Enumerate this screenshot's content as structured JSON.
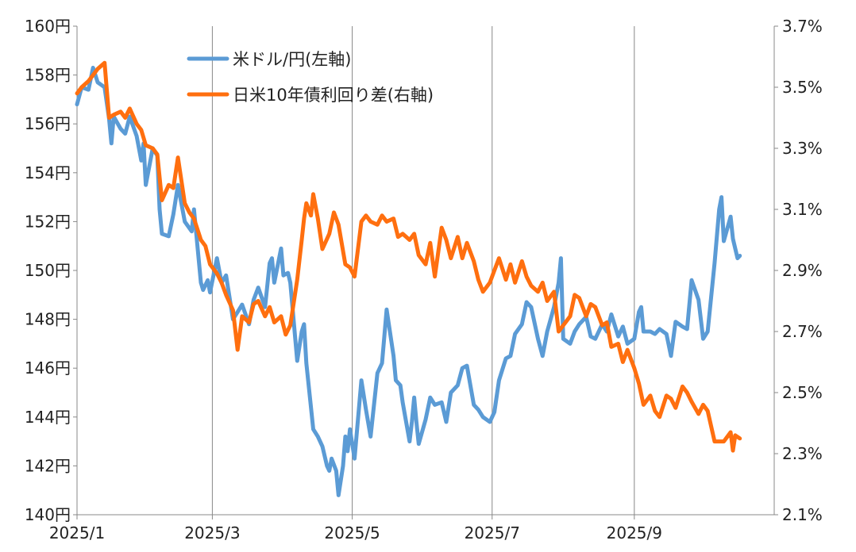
{
  "chart_data": {
    "type": "line",
    "title": "",
    "x_ticks": [
      "2025/1",
      "2025/3",
      "2025/5",
      "2025/7",
      "2025/9"
    ],
    "left_axis": {
      "ticks": [
        "140円",
        "142円",
        "144円",
        "146円",
        "148円",
        "150円",
        "152円",
        "154円",
        "156円",
        "158円",
        "160円"
      ],
      "ylim": [
        140,
        160
      ]
    },
    "right_axis": {
      "ticks": [
        "2.1%",
        "2.3%",
        "2.5%",
        "2.7%",
        "2.9%",
        "3.1%",
        "3.3%",
        "3.5%",
        "3.7%"
      ],
      "ylim": [
        2.1,
        3.7
      ]
    },
    "grid": "vertical-only",
    "legend_position": "top-center",
    "series": [
      {
        "name": "米ドル/円(左軸)",
        "axis": "left",
        "color": "#5B9BD5",
        "points": [
          [
            "2025-01-01",
            156.8
          ],
          [
            "2025-01-03",
            157.5
          ],
          [
            "2025-01-06",
            157.4
          ],
          [
            "2025-01-08",
            158.3
          ],
          [
            "2025-01-10",
            157.7
          ],
          [
            "2025-01-13",
            157.5
          ],
          [
            "2025-01-15",
            156.2
          ],
          [
            "2025-01-16",
            155.2
          ],
          [
            "2025-01-17",
            156.3
          ],
          [
            "2025-01-20",
            155.8
          ],
          [
            "2025-01-22",
            155.6
          ],
          [
            "2025-01-24",
            156.3
          ],
          [
            "2025-01-27",
            155.5
          ],
          [
            "2025-01-29",
            154.5
          ],
          [
            "2025-01-30",
            155.2
          ],
          [
            "2025-01-31",
            153.5
          ],
          [
            "2025-02-03",
            155.0
          ],
          [
            "2025-02-05",
            154.7
          ],
          [
            "2025-02-06",
            152.5
          ],
          [
            "2025-02-07",
            151.5
          ],
          [
            "2025-02-10",
            151.4
          ],
          [
            "2025-02-12",
            152.3
          ],
          [
            "2025-02-14",
            153.5
          ],
          [
            "2025-02-17",
            152.0
          ],
          [
            "2025-02-20",
            151.6
          ],
          [
            "2025-02-21",
            152.5
          ],
          [
            "2025-02-24",
            149.5
          ],
          [
            "2025-02-25",
            149.2
          ],
          [
            "2025-02-27",
            149.6
          ],
          [
            "2025-02-28",
            149.1
          ],
          [
            "2025-03-03",
            150.5
          ],
          [
            "2025-03-05",
            149.5
          ],
          [
            "2025-03-07",
            149.8
          ],
          [
            "2025-03-10",
            148.0
          ],
          [
            "2025-03-12",
            148.3
          ],
          [
            "2025-03-14",
            148.6
          ],
          [
            "2025-03-17",
            147.8
          ],
          [
            "2025-03-19",
            148.8
          ],
          [
            "2025-03-21",
            149.3
          ],
          [
            "2025-03-24",
            148.5
          ],
          [
            "2025-03-26",
            150.3
          ],
          [
            "2025-03-27",
            150.5
          ],
          [
            "2025-03-28",
            149.5
          ],
          [
            "2025-03-31",
            150.9
          ],
          [
            "2025-04-01",
            149.8
          ],
          [
            "2025-04-03",
            149.9
          ],
          [
            "2025-04-04",
            149.5
          ],
          [
            "2025-04-07",
            146.3
          ],
          [
            "2025-04-09",
            147.5
          ],
          [
            "2025-04-10",
            147.8
          ],
          [
            "2025-04-11",
            146.2
          ],
          [
            "2025-04-14",
            143.5
          ],
          [
            "2025-04-16",
            143.2
          ],
          [
            "2025-04-18",
            142.8
          ],
          [
            "2025-04-20",
            142.0
          ],
          [
            "2025-04-21",
            141.8
          ],
          [
            "2025-04-22",
            142.3
          ],
          [
            "2025-04-24",
            141.8
          ],
          [
            "2025-04-25",
            140.8
          ],
          [
            "2025-04-27",
            142.0
          ],
          [
            "2025-04-28",
            143.2
          ],
          [
            "2025-04-29",
            142.6
          ],
          [
            "2025-04-30",
            143.5
          ],
          [
            "2025-05-02",
            142.3
          ],
          [
            "2025-05-05",
            145.5
          ],
          [
            "2025-05-07",
            144.3
          ],
          [
            "2025-05-09",
            143.2
          ],
          [
            "2025-05-12",
            145.8
          ],
          [
            "2025-05-14",
            146.2
          ],
          [
            "2025-05-15",
            147.3
          ],
          [
            "2025-05-16",
            148.4
          ],
          [
            "2025-05-19",
            146.5
          ],
          [
            "2025-05-20",
            145.5
          ],
          [
            "2025-05-22",
            145.3
          ],
          [
            "2025-05-23",
            144.6
          ],
          [
            "2025-05-26",
            143.0
          ],
          [
            "2025-05-27",
            143.8
          ],
          [
            "2025-05-28",
            144.8
          ],
          [
            "2025-05-29",
            143.8
          ],
          [
            "2025-05-30",
            142.9
          ],
          [
            "2025-06-02",
            143.9
          ],
          [
            "2025-06-04",
            144.8
          ],
          [
            "2025-06-06",
            144.5
          ],
          [
            "2025-06-09",
            144.6
          ],
          [
            "2025-06-11",
            143.8
          ],
          [
            "2025-06-13",
            145.0
          ],
          [
            "2025-06-16",
            145.3
          ],
          [
            "2025-06-18",
            146.0
          ],
          [
            "2025-06-20",
            146.1
          ],
          [
            "2025-06-23",
            144.5
          ],
          [
            "2025-06-25",
            144.3
          ],
          [
            "2025-06-27",
            144.0
          ],
          [
            "2025-06-30",
            143.8
          ],
          [
            "2025-07-02",
            144.2
          ],
          [
            "2025-07-04",
            145.5
          ],
          [
            "2025-07-07",
            146.4
          ],
          [
            "2025-07-09",
            146.5
          ],
          [
            "2025-07-11",
            147.4
          ],
          [
            "2025-07-14",
            147.8
          ],
          [
            "2025-07-16",
            148.7
          ],
          [
            "2025-07-18",
            148.5
          ],
          [
            "2025-07-21",
            147.2
          ],
          [
            "2025-07-23",
            146.5
          ],
          [
            "2025-07-25",
            147.5
          ],
          [
            "2025-07-28",
            148.5
          ],
          [
            "2025-07-30",
            149.5
          ],
          [
            "2025-07-31",
            150.5
          ],
          [
            "2025-08-01",
            147.2
          ],
          [
            "2025-08-04",
            147.0
          ],
          [
            "2025-08-06",
            147.5
          ],
          [
            "2025-08-08",
            147.8
          ],
          [
            "2025-08-11",
            148.1
          ],
          [
            "2025-08-13",
            147.3
          ],
          [
            "2025-08-15",
            147.2
          ],
          [
            "2025-08-18",
            147.8
          ],
          [
            "2025-08-20",
            147.5
          ],
          [
            "2025-08-22",
            148.2
          ],
          [
            "2025-08-25",
            147.3
          ],
          [
            "2025-08-27",
            147.7
          ],
          [
            "2025-08-29",
            147.0
          ],
          [
            "2025-09-01",
            147.2
          ],
          [
            "2025-09-03",
            148.3
          ],
          [
            "2025-09-04",
            148.5
          ],
          [
            "2025-09-05",
            147.5
          ],
          [
            "2025-09-08",
            147.5
          ],
          [
            "2025-09-10",
            147.4
          ],
          [
            "2025-09-12",
            147.6
          ],
          [
            "2025-09-15",
            147.4
          ],
          [
            "2025-09-17",
            146.5
          ],
          [
            "2025-09-19",
            147.9
          ],
          [
            "2025-09-22",
            147.7
          ],
          [
            "2025-09-24",
            147.6
          ],
          [
            "2025-09-26",
            149.6
          ],
          [
            "2025-09-29",
            148.8
          ],
          [
            "2025-09-30",
            148.0
          ],
          [
            "2025-10-01",
            147.2
          ],
          [
            "2025-10-03",
            147.5
          ],
          [
            "2025-10-06",
            150.3
          ],
          [
            "2025-10-08",
            152.5
          ],
          [
            "2025-10-09",
            153.0
          ],
          [
            "2025-10-10",
            151.2
          ],
          [
            "2025-10-13",
            152.2
          ],
          [
            "2025-10-14",
            151.3
          ],
          [
            "2025-10-16",
            150.5
          ],
          [
            "2025-10-17",
            150.6
          ]
        ]
      },
      {
        "name": "日米10年債利回り差(右軸)",
        "axis": "right",
        "color": "#FF6F0F",
        "points": [
          [
            "2025-01-01",
            3.48
          ],
          [
            "2025-01-03",
            3.5
          ],
          [
            "2025-01-06",
            3.52
          ],
          [
            "2025-01-08",
            3.54
          ],
          [
            "2025-01-10",
            3.56
          ],
          [
            "2025-01-13",
            3.58
          ],
          [
            "2025-01-15",
            3.4
          ],
          [
            "2025-01-17",
            3.41
          ],
          [
            "2025-01-20",
            3.42
          ],
          [
            "2025-01-22",
            3.4
          ],
          [
            "2025-01-24",
            3.43
          ],
          [
            "2025-01-27",
            3.38
          ],
          [
            "2025-01-29",
            3.36
          ],
          [
            "2025-01-31",
            3.31
          ],
          [
            "2025-02-03",
            3.3
          ],
          [
            "2025-02-05",
            3.28
          ],
          [
            "2025-02-07",
            3.13
          ],
          [
            "2025-02-10",
            3.18
          ],
          [
            "2025-02-12",
            3.17
          ],
          [
            "2025-02-14",
            3.27
          ],
          [
            "2025-02-17",
            3.12
          ],
          [
            "2025-02-19",
            3.09
          ],
          [
            "2025-02-21",
            3.07
          ],
          [
            "2025-02-24",
            3.0
          ],
          [
            "2025-02-26",
            2.98
          ],
          [
            "2025-02-28",
            2.92
          ],
          [
            "2025-03-03",
            2.89
          ],
          [
            "2025-03-05",
            2.86
          ],
          [
            "2025-03-07",
            2.82
          ],
          [
            "2025-03-10",
            2.77
          ],
          [
            "2025-03-12",
            2.64
          ],
          [
            "2025-03-14",
            2.75
          ],
          [
            "2025-03-17",
            2.73
          ],
          [
            "2025-03-19",
            2.79
          ],
          [
            "2025-03-21",
            2.8
          ],
          [
            "2025-03-24",
            2.75
          ],
          [
            "2025-03-26",
            2.78
          ],
          [
            "2025-03-28",
            2.73
          ],
          [
            "2025-03-31",
            2.75
          ],
          [
            "2025-04-02",
            2.69
          ],
          [
            "2025-04-04",
            2.72
          ],
          [
            "2025-04-07",
            2.87
          ],
          [
            "2025-04-09",
            3.0
          ],
          [
            "2025-04-10",
            3.07
          ],
          [
            "2025-04-11",
            3.12
          ],
          [
            "2025-04-13",
            3.08
          ],
          [
            "2025-04-14",
            3.15
          ],
          [
            "2025-04-16",
            3.07
          ],
          [
            "2025-04-18",
            2.97
          ],
          [
            "2025-04-21",
            3.02
          ],
          [
            "2025-04-23",
            3.09
          ],
          [
            "2025-04-25",
            3.05
          ],
          [
            "2025-04-28",
            2.92
          ],
          [
            "2025-04-30",
            2.91
          ],
          [
            "2025-05-02",
            2.88
          ],
          [
            "2025-05-05",
            3.06
          ],
          [
            "2025-05-07",
            3.08
          ],
          [
            "2025-05-09",
            3.06
          ],
          [
            "2025-05-12",
            3.05
          ],
          [
            "2025-05-14",
            3.08
          ],
          [
            "2025-05-16",
            3.06
          ],
          [
            "2025-05-19",
            3.07
          ],
          [
            "2025-05-21",
            3.01
          ],
          [
            "2025-05-23",
            3.02
          ],
          [
            "2025-05-26",
            3.0
          ],
          [
            "2025-05-28",
            3.02
          ],
          [
            "2025-05-30",
            2.95
          ],
          [
            "2025-06-02",
            2.92
          ],
          [
            "2025-06-04",
            2.99
          ],
          [
            "2025-06-06",
            2.88
          ],
          [
            "2025-06-09",
            3.04
          ],
          [
            "2025-06-11",
            3.0
          ],
          [
            "2025-06-13",
            2.94
          ],
          [
            "2025-06-16",
            3.01
          ],
          [
            "2025-06-18",
            2.94
          ],
          [
            "2025-06-20",
            2.99
          ],
          [
            "2025-06-23",
            2.93
          ],
          [
            "2025-06-25",
            2.87
          ],
          [
            "2025-06-27",
            2.83
          ],
          [
            "2025-06-30",
            2.86
          ],
          [
            "2025-07-02",
            2.9
          ],
          [
            "2025-07-04",
            2.94
          ],
          [
            "2025-07-07",
            2.87
          ],
          [
            "2025-07-09",
            2.92
          ],
          [
            "2025-07-11",
            2.86
          ],
          [
            "2025-07-14",
            2.93
          ],
          [
            "2025-07-16",
            2.88
          ],
          [
            "2025-07-18",
            2.85
          ],
          [
            "2025-07-21",
            2.83
          ],
          [
            "2025-07-23",
            2.86
          ],
          [
            "2025-07-25",
            2.8
          ],
          [
            "2025-07-28",
            2.83
          ],
          [
            "2025-07-30",
            2.7
          ],
          [
            "2025-08-01",
            2.72
          ],
          [
            "2025-08-04",
            2.75
          ],
          [
            "2025-08-06",
            2.82
          ],
          [
            "2025-08-08",
            2.81
          ],
          [
            "2025-08-11",
            2.75
          ],
          [
            "2025-08-13",
            2.79
          ],
          [
            "2025-08-15",
            2.78
          ],
          [
            "2025-08-18",
            2.72
          ],
          [
            "2025-08-20",
            2.73
          ],
          [
            "2025-08-22",
            2.65
          ],
          [
            "2025-08-25",
            2.66
          ],
          [
            "2025-08-27",
            2.6
          ],
          [
            "2025-08-29",
            2.64
          ],
          [
            "2025-09-01",
            2.58
          ],
          [
            "2025-09-03",
            2.53
          ],
          [
            "2025-09-05",
            2.46
          ],
          [
            "2025-09-08",
            2.49
          ],
          [
            "2025-09-10",
            2.44
          ],
          [
            "2025-09-12",
            2.42
          ],
          [
            "2025-09-15",
            2.49
          ],
          [
            "2025-09-17",
            2.48
          ],
          [
            "2025-09-19",
            2.45
          ],
          [
            "2025-09-22",
            2.52
          ],
          [
            "2025-09-24",
            2.5
          ],
          [
            "2025-09-26",
            2.47
          ],
          [
            "2025-09-29",
            2.43
          ],
          [
            "2025-10-01",
            2.46
          ],
          [
            "2025-10-03",
            2.44
          ],
          [
            "2025-10-06",
            2.34
          ],
          [
            "2025-10-08",
            2.34
          ],
          [
            "2025-10-10",
            2.34
          ],
          [
            "2025-10-13",
            2.37
          ],
          [
            "2025-10-14",
            2.31
          ],
          [
            "2025-10-15",
            2.36
          ],
          [
            "2025-10-17",
            2.35
          ]
        ]
      }
    ]
  }
}
